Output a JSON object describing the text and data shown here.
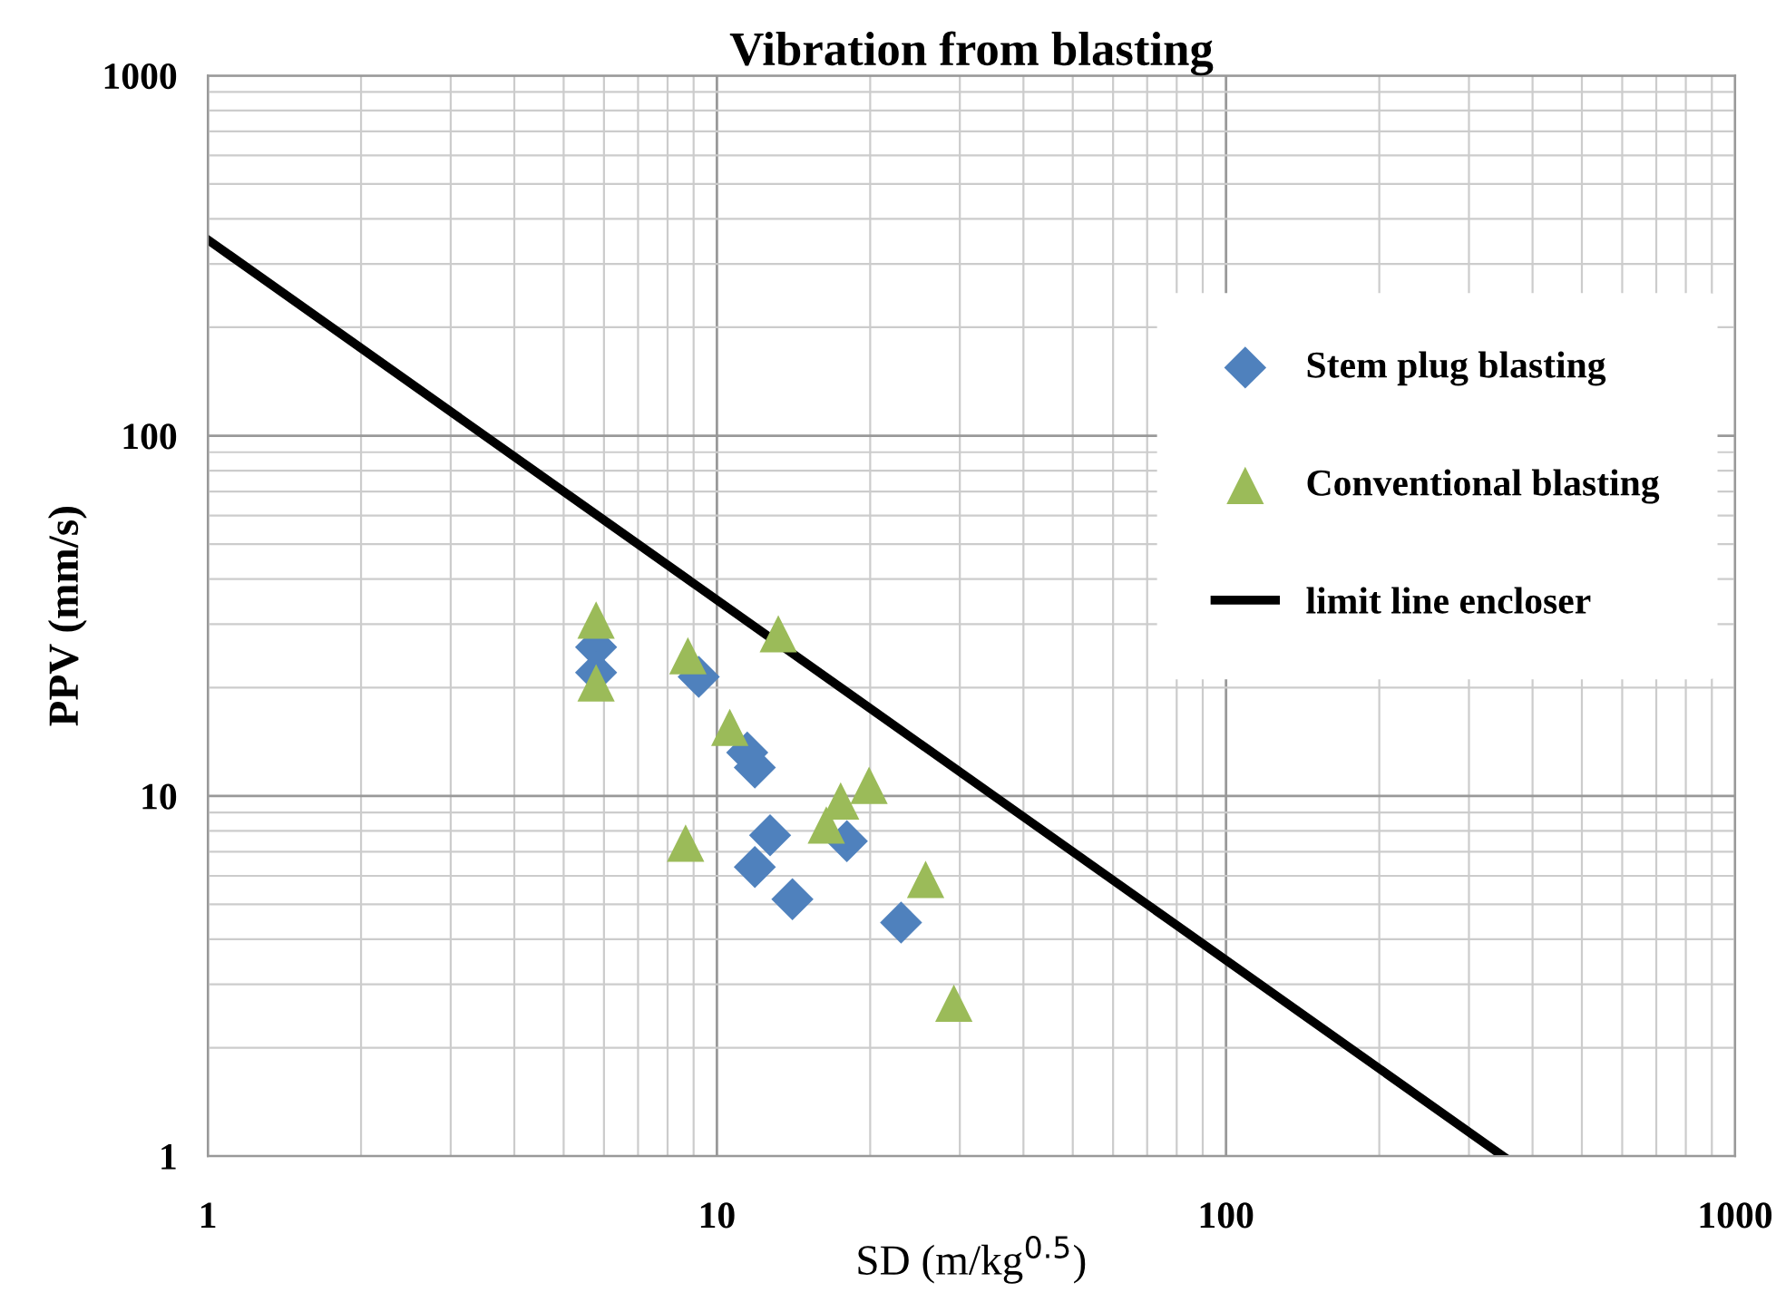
{
  "chart_data": {
    "type": "scatter",
    "title": "Vibration from blasting",
    "xlabel": "SD (m/kg$^{0.5}$)",
    "ylabel": "PPV (mm/s)",
    "log": "xy",
    "xlim": [
      1,
      1000
    ],
    "ylim": [
      1,
      1000
    ],
    "xticks": [
      1,
      10,
      100,
      1000
    ],
    "yticks": [
      1,
      10,
      100,
      1000
    ],
    "grid": true,
    "legend": "right",
    "series": [
      {
        "name": "Stem plug blasting",
        "marker": "diamond",
        "color": "#4f81bd",
        "x": [
          5.79,
          5.79,
          9.21,
          11.47,
          11.87,
          12.72,
          11.87,
          14.07,
          18.0,
          23.0
        ],
        "values": [
          25.9,
          22.0,
          21.4,
          13.2,
          12.0,
          7.78,
          6.35,
          5.17,
          7.49,
          4.45
        ]
      },
      {
        "name": "Conventional blasting",
        "marker": "triangle",
        "color": "#9bbb59",
        "x": [
          5.79,
          5.79,
          8.77,
          13.2,
          10.6,
          8.68,
          16.4,
          17.5,
          19.9,
          25.7,
          29.2
        ],
        "values": [
          30.8,
          20.6,
          24.5,
          28.2,
          15.5,
          7.4,
          8.31,
          9.69,
          10.7,
          5.87,
          2.66
        ]
      },
      {
        "name": "limit line encloser",
        "type": "line",
        "marker": "none",
        "line_style": "solid",
        "color": "#000000",
        "x": [
          1,
          350
        ],
        "values": [
          350,
          1
        ]
      }
    ]
  }
}
